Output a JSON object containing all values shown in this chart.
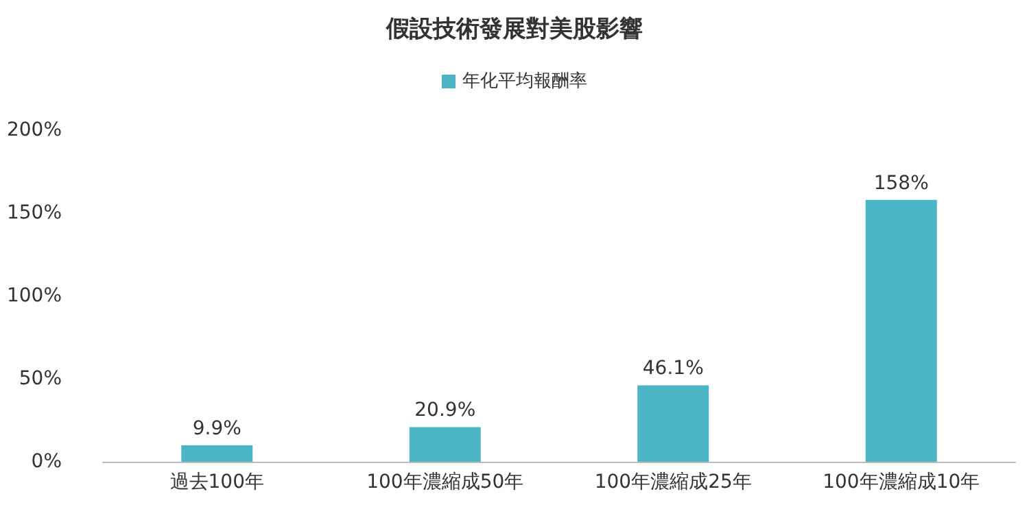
{
  "chart_data": {
    "type": "bar",
    "title": "假設技術發展對美股影響",
    "categories": [
      "過去100年",
      "100年濃縮成50年",
      "100年濃縮成25年",
      "100年濃縮成10年"
    ],
    "series": [
      {
        "name": "年化平均報酬率",
        "color": "#4bb5c6",
        "values": [
          9.9,
          20.9,
          46.1,
          158
        ],
        "value_labels": [
          "9.9%",
          "20.9%",
          "46.1%",
          "158%"
        ]
      }
    ],
    "ylim": [
      0,
      200
    ],
    "yticks": [
      {
        "value": 0,
        "label": "0%"
      },
      {
        "value": 50,
        "label": "50%"
      },
      {
        "value": 100,
        "label": "100%"
      },
      {
        "value": 150,
        "label": "150%"
      },
      {
        "value": 200,
        "label": "200%"
      }
    ],
    "grid": false,
    "legend": "top"
  }
}
